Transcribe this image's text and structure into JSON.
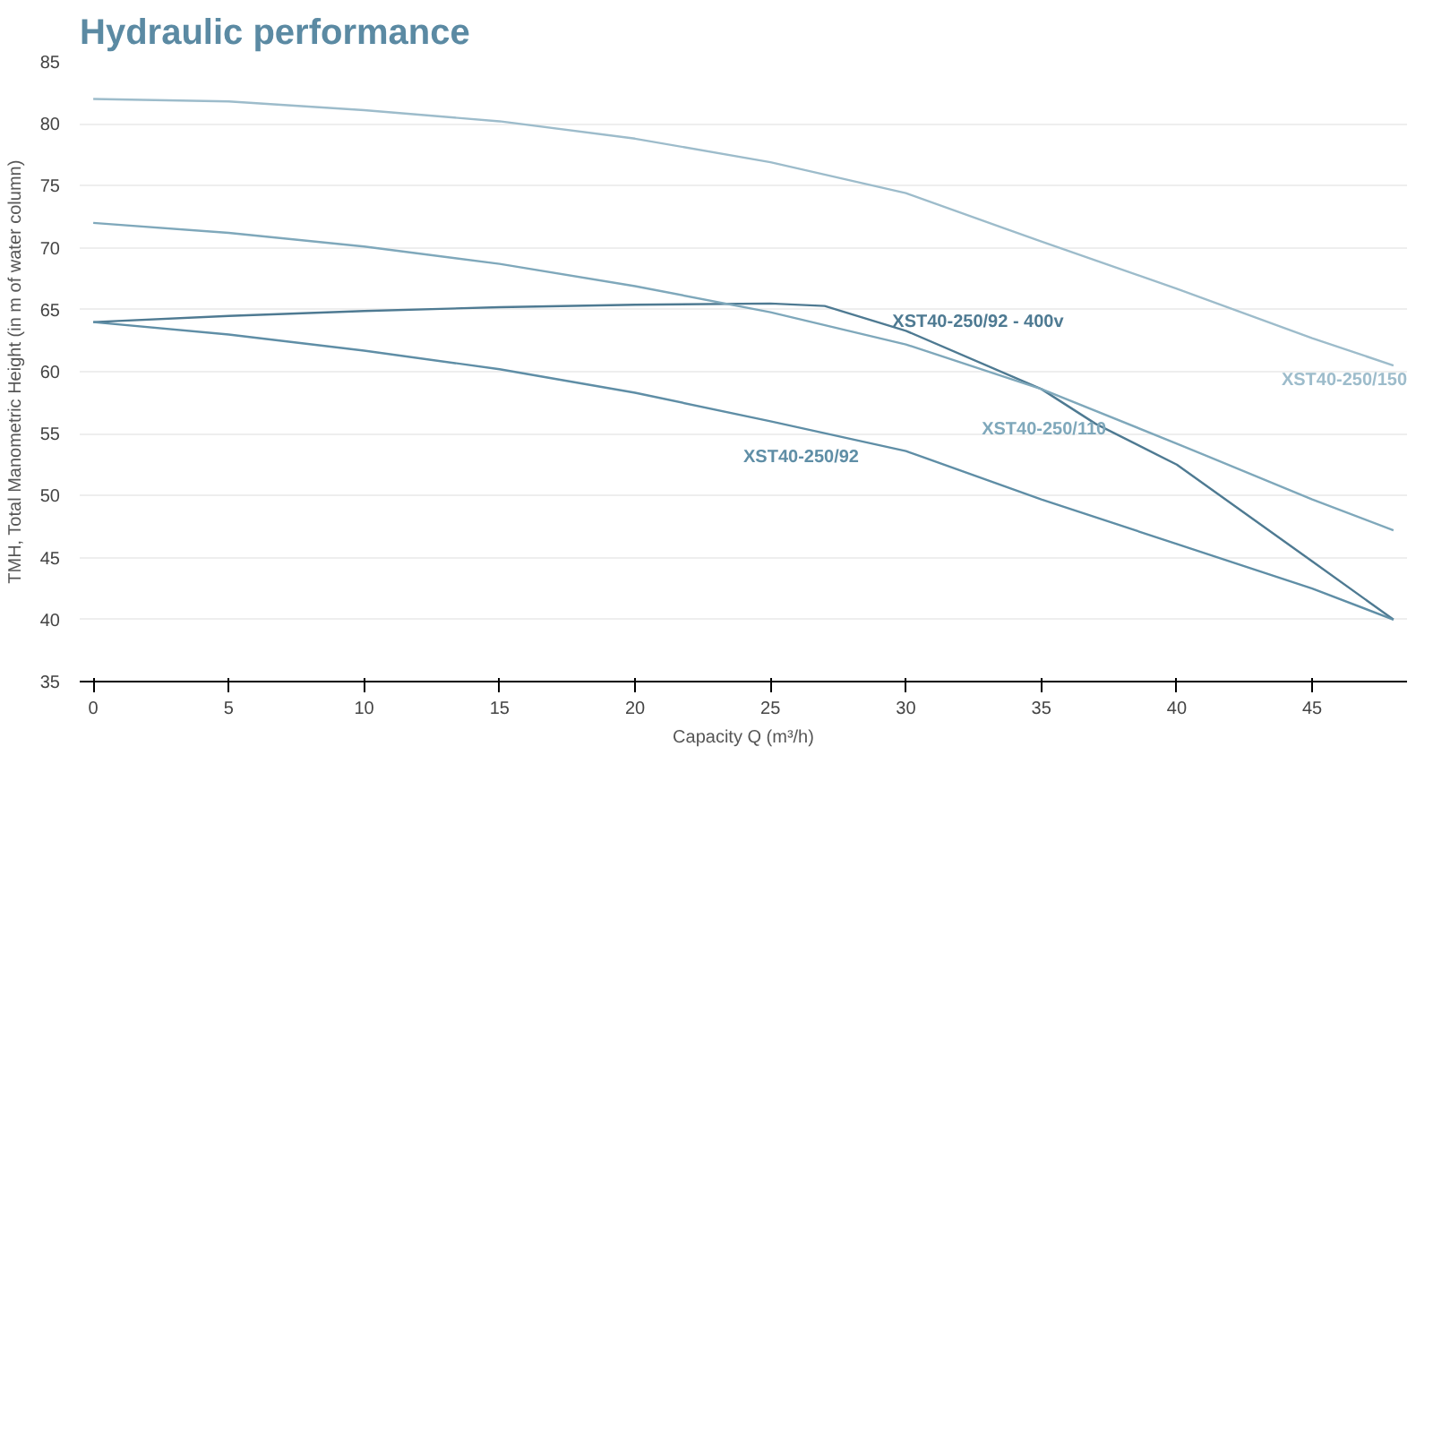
{
  "chart_data": {
    "type": "line",
    "title": "Hydraulic performance",
    "xlabel": "Capacity Q (m³/h)",
    "ylabel": "TMH, Total Manometric Height (in m of water column)",
    "x": [
      0,
      5,
      10,
      15,
      20,
      25,
      30,
      35,
      40,
      45,
      48
    ],
    "series": [
      {
        "name": "XST40-250/92 - 400v",
        "color": "#4e7a92",
        "x": [
          0,
          5,
          10,
          15,
          20,
          25,
          27,
          30,
          35,
          37,
          40,
          45,
          48
        ],
        "values": [
          64,
          64.5,
          64.9,
          65.2,
          65.4,
          65.5,
          65.3,
          63.3,
          58.6,
          55.8,
          52.5,
          44.7,
          40
        ]
      },
      {
        "name": "XST40-250/150",
        "color": "#9dbccb",
        "values": [
          82,
          81.8,
          81.1,
          80.2,
          78.8,
          76.9,
          74.4,
          70.5,
          66.7,
          62.7,
          60.5
        ]
      },
      {
        "name": "XST40-250/110",
        "color": "#7fa8bb",
        "values": [
          72,
          71.2,
          70.1,
          68.7,
          66.9,
          64.8,
          62.2,
          58.6,
          54.2,
          49.7,
          47.2
        ]
      },
      {
        "name": "XST40-250/92",
        "color": "#5f8ea6",
        "values": [
          64,
          63,
          61.7,
          60.2,
          58.3,
          56,
          53.6,
          49.7,
          46.1,
          42.5,
          40
        ]
      }
    ],
    "xlim": [
      -0.5,
      48.5
    ],
    "ylim": [
      35,
      85
    ],
    "xticks": [
      0,
      5,
      10,
      15,
      20,
      25,
      30,
      35,
      40,
      45
    ],
    "yticks": [
      35,
      40,
      45,
      50,
      55,
      60,
      65,
      70,
      75,
      80,
      85
    ],
    "grid": "y",
    "marker": "none",
    "line_style": "solid"
  }
}
